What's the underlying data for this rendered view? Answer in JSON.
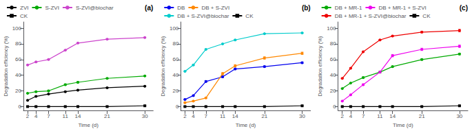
{
  "chart_data": [
    {
      "type": "line",
      "annotation": "(a)",
      "xlabel": "Time (d)",
      "ylabel": "Degradation efficiency (%)",
      "x": [
        2,
        4,
        7,
        11,
        14,
        21,
        30
      ],
      "xlim": [
        1,
        32
      ],
      "xticks": [
        2,
        4,
        7,
        11,
        14,
        21,
        30
      ],
      "ylim": [
        -5,
        108
      ],
      "yticks": [
        0,
        20,
        40,
        60,
        80,
        100
      ],
      "grid": false,
      "legend": "upper left",
      "series": [
        {
          "name": "ZVI",
          "color": "#000000",
          "marker": "circle",
          "values": [
            8,
            13,
            16,
            19,
            21,
            24,
            26
          ],
          "errors": [
            0.5,
            0.5,
            0.5,
            0.5,
            0.5,
            0.5,
            0.5
          ]
        },
        {
          "name": "S-ZVI",
          "color": "#00aa00",
          "marker": "circle",
          "values": [
            17,
            19,
            20,
            28,
            31,
            36,
            39
          ],
          "errors": [
            0.5,
            0.5,
            1.0,
            1.0,
            1.0,
            0.5,
            0.5
          ]
        },
        {
          "name": "S-ZVI@biochar",
          "color": "#cc44cc",
          "marker": "circle",
          "values": [
            53,
            57,
            60,
            72,
            81,
            86,
            88
          ],
          "errors": [
            0.5,
            0.5,
            0.5,
            0.5,
            0.5,
            0.5,
            0.5
          ]
        },
        {
          "name": "CK",
          "color": "#000000",
          "marker": "square",
          "values": [
            0,
            0,
            0,
            0,
            0,
            0,
            1
          ],
          "errors": [
            0.2,
            0.2,
            0.2,
            0.2,
            0.2,
            0.2,
            0.3
          ]
        }
      ]
    },
    {
      "type": "line",
      "annotation": "(b)",
      "xlabel": "Time (d)",
      "ylabel": "Degradation efficiency (%)",
      "x": [
        2,
        4,
        7,
        11,
        14,
        21,
        30
      ],
      "xlim": [
        1,
        32
      ],
      "xticks": [
        2,
        4,
        7,
        11,
        14,
        21,
        30
      ],
      "ylim": [
        -5,
        108
      ],
      "yticks": [
        0,
        20,
        40,
        60,
        80,
        100
      ],
      "grid": false,
      "legend": "upper left",
      "series": [
        {
          "name": "DB",
          "color": "#0000ee",
          "marker": "circle",
          "values": [
            9,
            14,
            32,
            38,
            48,
            51,
            56
          ],
          "errors": [
            0.5,
            0.5,
            1.0,
            1.0,
            1.0,
            1.0,
            1.0
          ]
        },
        {
          "name": "DB + S-ZVI",
          "color": "#ff8800",
          "marker": "circle",
          "values": [
            5,
            7,
            11,
            42,
            52,
            62,
            68
          ],
          "errors": [
            0.5,
            0.5,
            0.5,
            1.5,
            1.5,
            1.5,
            1.5
          ]
        },
        {
          "name": "DB + S-ZVI@biochar",
          "color": "#00cccc",
          "marker": "circle",
          "values": [
            45,
            53,
            73,
            80,
            85,
            93,
            94
          ],
          "errors": [
            0.5,
            0.5,
            0.5,
            0.5,
            0.5,
            0.5,
            0.5
          ]
        },
        {
          "name": "CK",
          "color": "#000000",
          "marker": "square",
          "values": [
            0,
            0,
            0,
            0,
            0,
            0,
            1
          ],
          "errors": [
            0.2,
            0.2,
            0.2,
            0.2,
            0.2,
            0.2,
            0.3
          ]
        }
      ]
    },
    {
      "type": "line",
      "annotation": "(c)",
      "xlabel": "Time (d)",
      "ylabel": "Degradation efficiency (%)",
      "x": [
        2,
        4,
        7,
        11,
        14,
        21,
        30
      ],
      "xlim": [
        1,
        32
      ],
      "xticks": [
        2,
        4,
        7,
        11,
        14,
        21,
        30
      ],
      "ylim": [
        -5,
        108
      ],
      "yticks": [
        0,
        20,
        40,
        60,
        80,
        100
      ],
      "grid": false,
      "legend": "upper left",
      "series": [
        {
          "name": "DB + MR-1",
          "color": "#00aa00",
          "marker": "circle",
          "values": [
            23,
            30,
            37,
            44,
            51,
            60,
            67
          ],
          "errors": [
            0.5,
            0.5,
            1.0,
            1.0,
            1.0,
            1.0,
            1.0
          ]
        },
        {
          "name": "DB + MR-1 + S-ZVI",
          "color": "#ee00ee",
          "marker": "circle",
          "values": [
            7,
            15,
            28,
            44,
            65,
            73,
            77
          ],
          "errors": [
            0.5,
            0.5,
            1.0,
            1.0,
            1.5,
            1.5,
            1.5
          ]
        },
        {
          "name": "DB + MR-1 + S-ZVI@biochar",
          "color": "#ee0000",
          "marker": "circle",
          "values": [
            36,
            49,
            70,
            85,
            90,
            95,
            97
          ],
          "errors": [
            0.5,
            0.5,
            0.5,
            0.5,
            0.5,
            1.0,
            1.5
          ]
        },
        {
          "name": "CK",
          "color": "#000000",
          "marker": "square",
          "values": [
            0,
            0,
            0,
            0,
            0,
            0,
            1
          ],
          "errors": [
            0.2,
            0.2,
            0.2,
            0.2,
            0.2,
            0.2,
            0.3
          ]
        }
      ]
    }
  ]
}
